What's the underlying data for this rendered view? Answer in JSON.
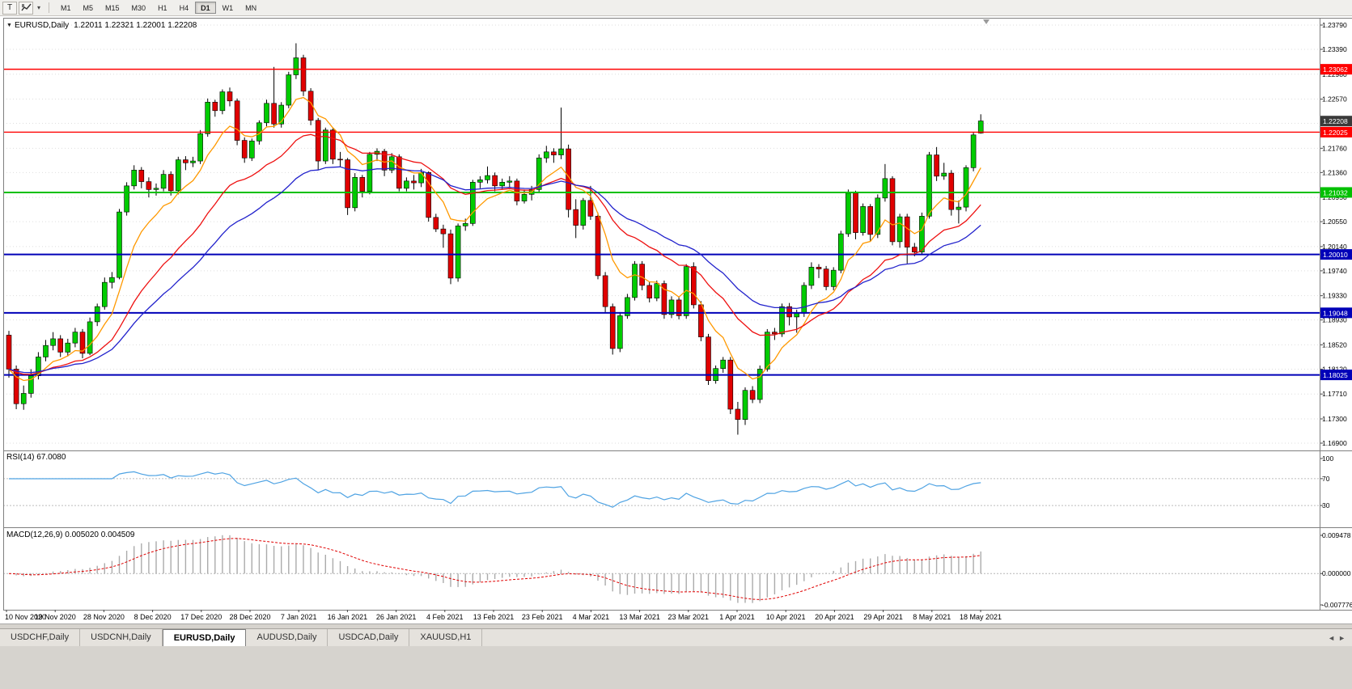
{
  "toolbar": {
    "template_button": "T",
    "dropdown_caret": "▾",
    "timeframes": [
      "M1",
      "M5",
      "M15",
      "M30",
      "H1",
      "H4",
      "D1",
      "W1",
      "MN"
    ],
    "active_timeframe": "D1"
  },
  "main_chart": {
    "collapse_icon": "▼",
    "symbol": "EURUSD,Daily",
    "ohlc": "1.22011 1.22321 1.22001 1.22208",
    "current_price": "1.22208",
    "current_price_bg": "#3a3a3a",
    "price_axis_labels": [
      "1.23790",
      "1.23390",
      "1.22980",
      "1.22570",
      "1.22170",
      "1.21760",
      "1.21360",
      "1.20950",
      "1.20550",
      "1.20140",
      "1.19740",
      "1.19330",
      "1.18930",
      "1.18520",
      "1.18120",
      "1.17710",
      "1.17300",
      "1.16900"
    ],
    "hlines": [
      {
        "price": 1.23062,
        "label": "1.23062",
        "color": "#ff0000",
        "width": 1.4
      },
      {
        "price": 1.22025,
        "label": "1.22025",
        "color": "#ff0000",
        "width": 1.4
      },
      {
        "price": 1.21032,
        "label": "1.21032",
        "color": "#00c000",
        "width": 2
      },
      {
        "price": 1.2001,
        "label": "1.20010",
        "color": "#0000b8",
        "width": 2
      },
      {
        "price": 1.19048,
        "label": "1.19048",
        "color": "#0000b8",
        "width": 2
      },
      {
        "price": 1.18025,
        "label": "1.18025",
        "color": "#0000b8",
        "width": 2
      }
    ],
    "date_axis_labels": [
      "10 Nov 2020",
      "19 Nov 2020",
      "28 Nov 2020",
      "8 Dec 2020",
      "17 Dec 2020",
      "28 Dec 2020",
      "7 Jan 2021",
      "16 Jan 2021",
      "26 Jan 2021",
      "4 Feb 2021",
      "13 Feb 2021",
      "23 Feb 2021",
      "4 Mar 2021",
      "13 Mar 2021",
      "23 Mar 2021",
      "1 Apr 2021",
      "10 Apr 2021",
      "20 Apr 2021",
      "29 Apr 2021",
      "8 May 2021",
      "18 May 2021"
    ]
  },
  "rsi_panel": {
    "label": "RSI(14) 67.0080",
    "axis_labels": [
      "100",
      "70",
      "30"
    ],
    "levels": [
      70,
      30
    ],
    "line_color": "#4fa3e3"
  },
  "macd_panel": {
    "label": "MACD(12,26,9) 0.005020 0.004509",
    "axis_labels": [
      "0.009478",
      "0.000000",
      "-0.007776"
    ],
    "axis_max": 0.009478,
    "axis_min": -0.007776,
    "hist_color": "#ababab",
    "signal_color": "#e00000"
  },
  "bottom_tabs": {
    "tabs": [
      "USDCHF,Daily",
      "USDCNH,Daily",
      "EURUSD,Daily",
      "AUDUSD,Daily",
      "USDCAD,Daily",
      "XAUUSD,H1"
    ],
    "active": "EURUSD,Daily",
    "scroll_left": "◄",
    "scroll_right": "►"
  },
  "chart_data": {
    "type": "candlestick",
    "symbol": "EURUSD",
    "timeframe": "Daily",
    "title": "EURUSD,Daily 1.22011 1.22321 1.22001 1.22208",
    "price_range": [
      1.169,
      1.2379
    ],
    "x_range": [
      "10 Nov 2020",
      "18 May 2021"
    ],
    "bull_color": "#00cc00",
    "bear_color": "#e00000",
    "wick_color": "#000000",
    "moving_averages": [
      {
        "period": 8,
        "color": "#ff9900"
      },
      {
        "period": 21,
        "color": "#ee1111"
      },
      {
        "period": 34,
        "color": "#2222cc"
      }
    ],
    "indicators": [
      {
        "name": "RSI",
        "period": 14,
        "value": 67.008
      },
      {
        "name": "MACD",
        "fast": 12,
        "slow": 26,
        "signal": 9,
        "value": 0.00502,
        "signal_value": 0.004509
      }
    ],
    "candles": [
      [
        1.1868,
        1.1875,
        1.1798,
        1.1812
      ],
      [
        1.1812,
        1.1818,
        1.1746,
        1.1755
      ],
      [
        1.1755,
        1.1785,
        1.1745,
        1.1772
      ],
      [
        1.1772,
        1.1812,
        1.1765,
        1.1801
      ],
      [
        1.1801,
        1.184,
        1.1795,
        1.1832
      ],
      [
        1.1832,
        1.186,
        1.1825,
        1.1851
      ],
      [
        1.1851,
        1.1873,
        1.1843,
        1.1862
      ],
      [
        1.1862,
        1.1868,
        1.1832,
        1.184
      ],
      [
        1.184,
        1.1862,
        1.1833,
        1.1855
      ],
      [
        1.1855,
        1.188,
        1.1848,
        1.1873
      ],
      [
        1.1873,
        1.1878,
        1.183,
        1.1838
      ],
      [
        1.1838,
        1.1897,
        1.1835,
        1.189
      ],
      [
        1.189,
        1.192,
        1.1883,
        1.1915
      ],
      [
        1.1915,
        1.1963,
        1.191,
        1.1955
      ],
      [
        1.1955,
        1.1972,
        1.1945,
        1.1963
      ],
      [
        1.1963,
        1.2076,
        1.196,
        1.2071
      ],
      [
        1.2071,
        1.212,
        1.2065,
        1.2114
      ],
      [
        1.2114,
        1.2148,
        1.2108,
        1.214
      ],
      [
        1.214,
        1.2145,
        1.211,
        1.2121
      ],
      [
        1.2121,
        1.2128,
        1.2095,
        1.2108
      ],
      [
        1.2108,
        1.2118,
        1.2098,
        1.211
      ],
      [
        1.211,
        1.214,
        1.2105,
        1.2133
      ],
      [
        1.2133,
        1.2138,
        1.2098,
        1.2106
      ],
      [
        1.2106,
        1.2162,
        1.21,
        1.2157
      ],
      [
        1.2157,
        1.2163,
        1.214,
        1.2152
      ],
      [
        1.2152,
        1.2162,
        1.2145,
        1.2155
      ],
      [
        1.2155,
        1.2206,
        1.215,
        1.22
      ],
      [
        1.22,
        1.2258,
        1.2195,
        1.2252
      ],
      [
        1.2252,
        1.2256,
        1.2228,
        1.2238
      ],
      [
        1.2238,
        1.2273,
        1.2232,
        1.2269
      ],
      [
        1.2269,
        1.2276,
        1.2245,
        1.2254
      ],
      [
        1.2254,
        1.2258,
        1.2181,
        1.2189
      ],
      [
        1.2189,
        1.2194,
        1.2152,
        1.216
      ],
      [
        1.216,
        1.2192,
        1.2155,
        1.2188
      ],
      [
        1.2188,
        1.2222,
        1.2182,
        1.2218
      ],
      [
        1.2218,
        1.2256,
        1.2212,
        1.225
      ],
      [
        1.225,
        1.231,
        1.221,
        1.2216
      ],
      [
        1.2216,
        1.2252,
        1.221,
        1.2247
      ],
      [
        1.2247,
        1.2302,
        1.2242,
        1.2297
      ],
      [
        1.2297,
        1.2349,
        1.229,
        1.2325
      ],
      [
        1.2325,
        1.233,
        1.2262,
        1.227
      ],
      [
        1.227,
        1.2275,
        1.2214,
        1.2222
      ],
      [
        1.2222,
        1.2226,
        1.214,
        1.2155
      ],
      [
        1.2155,
        1.221,
        1.215,
        1.2206
      ],
      [
        1.2206,
        1.221,
        1.215,
        1.2158
      ],
      [
        1.2158,
        1.217,
        1.2145,
        1.2157
      ],
      [
        1.2157,
        1.216,
        1.2066,
        1.2078
      ],
      [
        1.2078,
        1.2135,
        1.2072,
        1.2128
      ],
      [
        1.2128,
        1.2132,
        1.2095,
        1.2105
      ],
      [
        1.2105,
        1.217,
        1.21,
        1.2166
      ],
      [
        1.2166,
        1.2176,
        1.2155,
        1.2171
      ],
      [
        1.2171,
        1.2175,
        1.213,
        1.214
      ],
      [
        1.214,
        1.2168,
        1.2135,
        1.2162
      ],
      [
        1.2162,
        1.2166,
        1.2105,
        1.211
      ],
      [
        1.211,
        1.2128,
        1.2105,
        1.2122
      ],
      [
        1.2122,
        1.2132,
        1.2108,
        1.2119
      ],
      [
        1.2119,
        1.2142,
        1.2112,
        1.2136
      ],
      [
        1.2136,
        1.2138,
        1.2055,
        1.2062
      ],
      [
        1.2062,
        1.2068,
        1.2038,
        1.2043
      ],
      [
        1.2043,
        1.205,
        1.2012,
        1.2035
      ],
      [
        1.2035,
        1.2042,
        1.1952,
        1.1962
      ],
      [
        1.1962,
        1.2052,
        1.1956,
        1.2048
      ],
      [
        1.2048,
        1.206,
        1.204,
        1.2052
      ],
      [
        1.2052,
        1.2124,
        1.2048,
        1.212
      ],
      [
        1.212,
        1.213,
        1.211,
        1.2124
      ],
      [
        1.2124,
        1.2146,
        1.2118,
        1.2131
      ],
      [
        1.2131,
        1.2136,
        1.2105,
        1.2114
      ],
      [
        1.2114,
        1.2126,
        1.2108,
        1.212
      ],
      [
        1.212,
        1.213,
        1.2112,
        1.2122
      ],
      [
        1.2122,
        1.2126,
        1.2082,
        1.2089
      ],
      [
        1.2089,
        1.2108,
        1.2085,
        1.21
      ],
      [
        1.21,
        1.2114,
        1.209,
        1.2108
      ],
      [
        1.2108,
        1.2166,
        1.2102,
        1.216
      ],
      [
        1.216,
        1.218,
        1.2152,
        1.217
      ],
      [
        1.217,
        1.2176,
        1.2152,
        1.2165
      ],
      [
        1.2165,
        1.2243,
        1.2158,
        1.2175
      ],
      [
        1.2175,
        1.2182,
        1.2062,
        1.2075
      ],
      [
        1.2075,
        1.2092,
        1.2028,
        1.2049
      ],
      [
        1.2049,
        1.2094,
        1.2042,
        1.209
      ],
      [
        1.209,
        1.2114,
        1.2058,
        1.2064
      ],
      [
        1.2064,
        1.207,
        1.196,
        1.1966
      ],
      [
        1.1966,
        1.1972,
        1.1906,
        1.1915
      ],
      [
        1.1915,
        1.192,
        1.1836,
        1.1846
      ],
      [
        1.1846,
        1.1906,
        1.184,
        1.19
      ],
      [
        1.19,
        1.1936,
        1.1895,
        1.193
      ],
      [
        1.193,
        1.199,
        1.1925,
        1.1985
      ],
      [
        1.1985,
        1.199,
        1.1942,
        1.195
      ],
      [
        1.195,
        1.1956,
        1.1922,
        1.1929
      ],
      [
        1.1929,
        1.1958,
        1.1924,
        1.1953
      ],
      [
        1.1953,
        1.1958,
        1.1895,
        1.1902
      ],
      [
        1.1902,
        1.1932,
        1.1896,
        1.1926
      ],
      [
        1.1926,
        1.1932,
        1.1894,
        1.19
      ],
      [
        1.19,
        1.1985,
        1.1895,
        1.1981
      ],
      [
        1.1981,
        1.1988,
        1.1912,
        1.1918
      ],
      [
        1.1918,
        1.1924,
        1.1858,
        1.1865
      ],
      [
        1.1865,
        1.187,
        1.1786,
        1.1793
      ],
      [
        1.1793,
        1.1818,
        1.1788,
        1.1813
      ],
      [
        1.1813,
        1.1832,
        1.1806,
        1.1827
      ],
      [
        1.1827,
        1.1832,
        1.1738,
        1.1746
      ],
      [
        1.1746,
        1.1758,
        1.1704,
        1.1729
      ],
      [
        1.1729,
        1.1782,
        1.172,
        1.1777
      ],
      [
        1.1777,
        1.1784,
        1.1756,
        1.1762
      ],
      [
        1.1762,
        1.1818,
        1.1756,
        1.1812
      ],
      [
        1.1812,
        1.1878,
        1.1808,
        1.1873
      ],
      [
        1.1873,
        1.188,
        1.186,
        1.187
      ],
      [
        1.187,
        1.192,
        1.1865,
        1.1915
      ],
      [
        1.1915,
        1.1921,
        1.1884,
        1.1898
      ],
      [
        1.1898,
        1.191,
        1.1872,
        1.1904
      ],
      [
        1.1904,
        1.1955,
        1.1898,
        1.195
      ],
      [
        1.195,
        1.1988,
        1.1944,
        1.198
      ],
      [
        1.198,
        1.1985,
        1.1962,
        1.1977
      ],
      [
        1.1977,
        1.1982,
        1.1942,
        1.1948
      ],
      [
        1.1948,
        1.198,
        1.1942,
        1.1975
      ],
      [
        1.1975,
        1.204,
        1.197,
        1.2035
      ],
      [
        1.2035,
        1.2108,
        1.203,
        1.2102
      ],
      [
        1.2102,
        1.2106,
        1.2026,
        1.2037
      ],
      [
        1.2037,
        1.2085,
        1.2032,
        1.208
      ],
      [
        1.208,
        1.2084,
        1.2022,
        1.2034
      ],
      [
        1.2034,
        1.21,
        1.2028,
        1.2094
      ],
      [
        1.2094,
        1.215,
        1.2088,
        1.2126
      ],
      [
        1.2126,
        1.213,
        1.2016,
        1.2022
      ],
      [
        1.2022,
        1.2068,
        1.2012,
        1.2063
      ],
      [
        1.2063,
        1.2068,
        1.1986,
        1.2013
      ],
      [
        1.2013,
        1.202,
        1.1998,
        1.2005
      ],
      [
        1.2005,
        1.207,
        1.2,
        1.2064
      ],
      [
        1.2064,
        1.217,
        1.206,
        1.2165
      ],
      [
        1.2165,
        1.2178,
        1.2122,
        1.213
      ],
      [
        1.213,
        1.2152,
        1.2124,
        1.2135
      ],
      [
        1.2135,
        1.214,
        1.2065,
        1.2075
      ],
      [
        1.2075,
        1.209,
        1.2052,
        1.2079
      ],
      [
        1.2079,
        1.2148,
        1.2072,
        1.2144
      ],
      [
        1.2144,
        1.2202,
        1.2138,
        1.2198
      ],
      [
        1.2201,
        1.2232,
        1.22,
        1.2221
      ]
    ]
  }
}
